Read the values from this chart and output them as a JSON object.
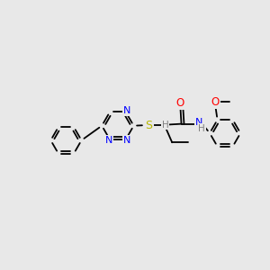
{
  "bg_color": "#e8e8e8",
  "bond_color": "#000000",
  "atom_colors": {
    "N": "#0000ff",
    "S": "#b8b800",
    "O": "#ff0000",
    "C": "#000000",
    "H": "#808080"
  },
  "font_size": 7.5,
  "line_width": 1.3,
  "fig_size": [
    3.0,
    3.0
  ],
  "dpi": 100,
  "xlim": [
    0,
    10
  ],
  "ylim": [
    0,
    10
  ]
}
